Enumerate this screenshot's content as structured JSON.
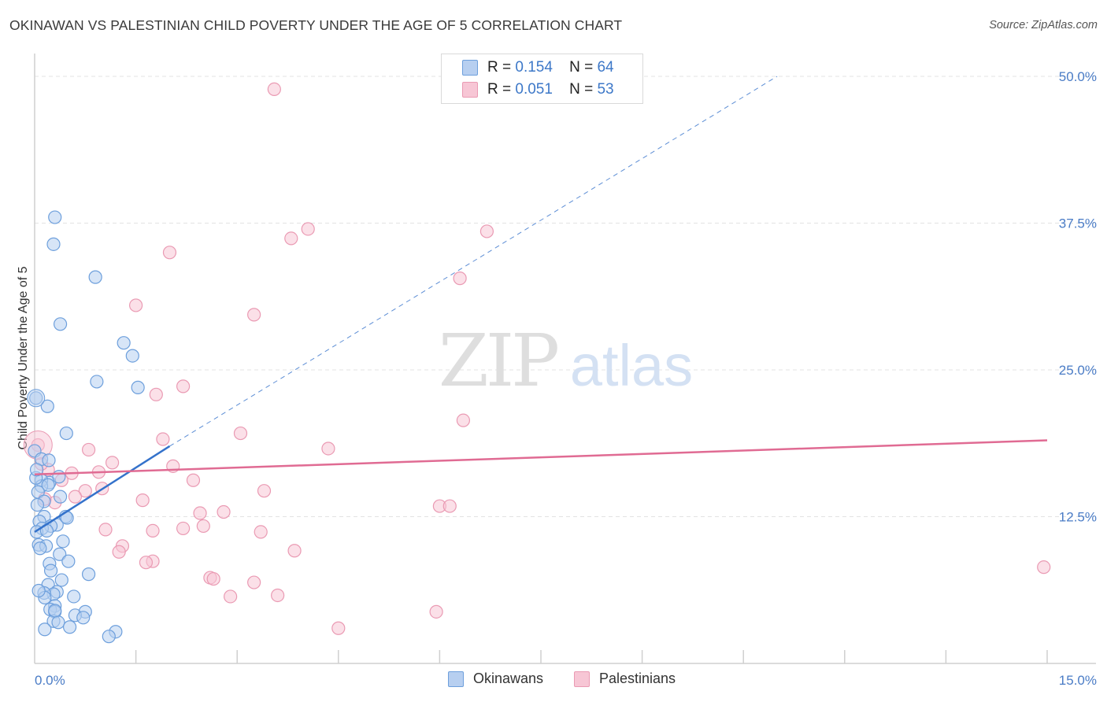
{
  "header": {
    "title": "OKINAWAN VS PALESTINIAN CHILD POVERTY UNDER THE AGE OF 5 CORRELATION CHART",
    "source": "Source: ZipAtlas.com"
  },
  "watermark": {
    "zip": "ZIP",
    "atlas": "atlas"
  },
  "legend": {
    "okinawans": {
      "r_label": "R =",
      "r_value": "0.154",
      "n_label": "N =",
      "n_value": "64"
    },
    "palestinians": {
      "r_label": "R =",
      "r_value": "0.051",
      "n_label": "N =",
      "n_value": "53"
    }
  },
  "bottom_legend": {
    "okinawans": "Okinawans",
    "palestinians": "Palestinians"
  },
  "colors": {
    "okinawans_fill": "#b7cff0",
    "okinawans_stroke": "#6d9fdc",
    "okinawans_line": "#3472cb",
    "palestinians_fill": "#f7c6d5",
    "palestinians_stroke": "#ea9ab3",
    "palestinians_line": "#e06b93",
    "tick_text": "#4a7cc6",
    "grid": "#e3e3e3"
  },
  "chart_data": {
    "type": "scatter",
    "title": "OKINAWAN VS PALESTINIAN CHILD POVERTY UNDER THE AGE OF 5 CORRELATION CHART",
    "xlabel": "",
    "ylabel": "Child Poverty Under the Age of 5",
    "xlim": [
      0,
      15
    ],
    "ylim": [
      0,
      50
    ],
    "x_tick_labels": [
      "0.0%",
      "15.0%"
    ],
    "y_tick_values": [
      12.5,
      25.0,
      37.5,
      50.0
    ],
    "y_tick_labels": [
      "12.5%",
      "25.0%",
      "37.5%",
      "50.0%"
    ],
    "grid": true,
    "legend_position": "top-center",
    "series": [
      {
        "name": "Okinawans",
        "points": [
          [
            0.3,
            38.0
          ],
          [
            0.28,
            35.7
          ],
          [
            0.9,
            32.9
          ],
          [
            0.38,
            28.9
          ],
          [
            1.32,
            27.3
          ],
          [
            1.45,
            26.2
          ],
          [
            0.92,
            24.0
          ],
          [
            1.53,
            23.5
          ],
          [
            0.02,
            22.6
          ],
          [
            0.19,
            21.9
          ],
          [
            0.47,
            19.6
          ],
          [
            0.0,
            18.1
          ],
          [
            0.1,
            17.4
          ],
          [
            0.21,
            17.3
          ],
          [
            0.22,
            15.4
          ],
          [
            0.1,
            15.6
          ],
          [
            0.36,
            15.9
          ],
          [
            0.1,
            15.1
          ],
          [
            0.2,
            15.2
          ],
          [
            0.05,
            14.6
          ],
          [
            0.38,
            14.2
          ],
          [
            0.14,
            13.8
          ],
          [
            0.04,
            13.5
          ],
          [
            0.46,
            12.5
          ],
          [
            0.14,
            12.5
          ],
          [
            0.07,
            12.1
          ],
          [
            0.33,
            11.8
          ],
          [
            0.24,
            11.7
          ],
          [
            0.11,
            11.5
          ],
          [
            0.03,
            11.2
          ],
          [
            0.42,
            10.4
          ],
          [
            0.06,
            10.1
          ],
          [
            0.17,
            10.0
          ],
          [
            0.08,
            9.8
          ],
          [
            0.37,
            9.3
          ],
          [
            0.5,
            8.7
          ],
          [
            0.22,
            8.5
          ],
          [
            0.24,
            7.9
          ],
          [
            0.8,
            7.6
          ],
          [
            0.4,
            7.1
          ],
          [
            0.2,
            6.7
          ],
          [
            0.33,
            6.1
          ],
          [
            0.28,
            5.9
          ],
          [
            0.14,
            6.0
          ],
          [
            0.58,
            5.7
          ],
          [
            0.15,
            5.6
          ],
          [
            0.3,
            4.9
          ],
          [
            0.23,
            4.6
          ],
          [
            0.3,
            4.4
          ],
          [
            0.75,
            4.4
          ],
          [
            0.6,
            4.1
          ],
          [
            0.72,
            3.9
          ],
          [
            0.28,
            3.6
          ],
          [
            0.35,
            3.5
          ],
          [
            0.52,
            3.1
          ],
          [
            0.15,
            2.9
          ],
          [
            1.2,
            2.7
          ],
          [
            1.1,
            2.3
          ],
          [
            0.06,
            6.2
          ],
          [
            0.48,
            12.4
          ],
          [
            0.02,
            15.8
          ],
          [
            0.03,
            16.5
          ],
          [
            0.3,
            4.5
          ],
          [
            0.18,
            11.3
          ]
        ]
      },
      {
        "name": "Palestinians",
        "points": [
          [
            3.55,
            48.9
          ],
          [
            4.05,
            37.0
          ],
          [
            6.7,
            36.8
          ],
          [
            3.8,
            36.2
          ],
          [
            2.0,
            35.0
          ],
          [
            6.3,
            32.8
          ],
          [
            1.5,
            30.5
          ],
          [
            3.25,
            29.7
          ],
          [
            1.8,
            22.9
          ],
          [
            2.2,
            23.6
          ],
          [
            6.35,
            20.7
          ],
          [
            3.05,
            19.6
          ],
          [
            1.9,
            19.1
          ],
          [
            4.35,
            18.3
          ],
          [
            0.8,
            18.2
          ],
          [
            1.15,
            17.1
          ],
          [
            2.05,
            16.8
          ],
          [
            0.55,
            16.2
          ],
          [
            0.95,
            16.3
          ],
          [
            0.75,
            14.7
          ],
          [
            1.0,
            14.9
          ],
          [
            0.4,
            15.6
          ],
          [
            2.35,
            15.6
          ],
          [
            3.4,
            14.7
          ],
          [
            0.6,
            14.2
          ],
          [
            1.6,
            13.9
          ],
          [
            0.3,
            13.7
          ],
          [
            6.0,
            13.4
          ],
          [
            6.15,
            13.4
          ],
          [
            2.8,
            12.9
          ],
          [
            2.45,
            12.8
          ],
          [
            2.5,
            11.7
          ],
          [
            2.2,
            11.5
          ],
          [
            1.05,
            11.4
          ],
          [
            1.75,
            11.3
          ],
          [
            3.35,
            11.2
          ],
          [
            1.3,
            10.0
          ],
          [
            1.25,
            9.5
          ],
          [
            3.85,
            9.6
          ],
          [
            1.75,
            8.7
          ],
          [
            1.65,
            8.6
          ],
          [
            2.6,
            7.3
          ],
          [
            2.65,
            7.2
          ],
          [
            3.25,
            6.9
          ],
          [
            2.9,
            5.7
          ],
          [
            3.6,
            5.8
          ],
          [
            5.95,
            4.4
          ],
          [
            4.5,
            3.0
          ],
          [
            14.95,
            8.2
          ],
          [
            0.05,
            18.6
          ],
          [
            0.2,
            16.5
          ],
          [
            0.15,
            14.0
          ],
          [
            0.1,
            17.0
          ]
        ]
      }
    ],
    "trend_lines": [
      {
        "series": "Okinawans",
        "solid_from": [
          0.0,
          11.2
        ],
        "solid_to": [
          2.0,
          18.5
        ],
        "dashed_to": [
          11.0,
          50.0
        ]
      },
      {
        "series": "Palestinians",
        "from": [
          0.0,
          16.1
        ],
        "to": [
          15.0,
          19.0
        ]
      }
    ]
  }
}
